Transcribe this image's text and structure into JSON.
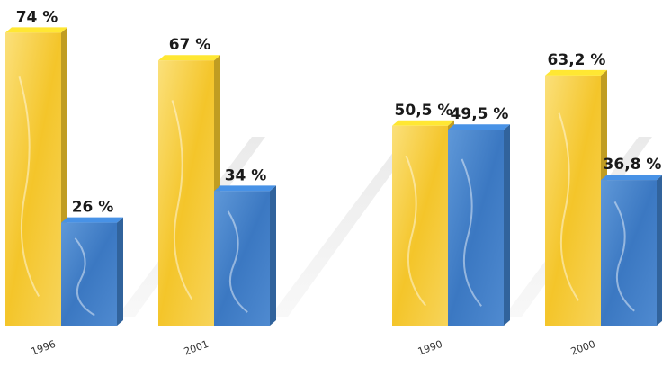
{
  "chart_data": {
    "type": "bar",
    "title": "",
    "xlabel": "",
    "ylabel": "",
    "grid": false,
    "legend": "none",
    "groups": [
      {
        "year": "1996",
        "bars": [
          {
            "value": 74,
            "label": "74 %",
            "color": "#f6c92c"
          },
          {
            "value": 26,
            "label": "26 %",
            "color": "#3f7fc8"
          }
        ]
      },
      {
        "year": "2001",
        "bars": [
          {
            "value": 67,
            "label": "67 %",
            "color": "#f6c92c"
          },
          {
            "value": 34,
            "label": "34 %",
            "color": "#3f7fc8"
          }
        ]
      },
      {
        "year": "1990",
        "bars": [
          {
            "value": 50.5,
            "label": "50,5 %",
            "color": "#f6c92c"
          },
          {
            "value": 49.5,
            "label": "49,5 %",
            "color": "#3f7fc8"
          }
        ]
      },
      {
        "year": "2000",
        "bars": [
          {
            "value": 63.2,
            "label": "63,2 %",
            "color": "#f6c92c"
          },
          {
            "value": 36.8,
            "label": "36,8 %",
            "color": "#3f7fc8"
          }
        ]
      }
    ]
  }
}
